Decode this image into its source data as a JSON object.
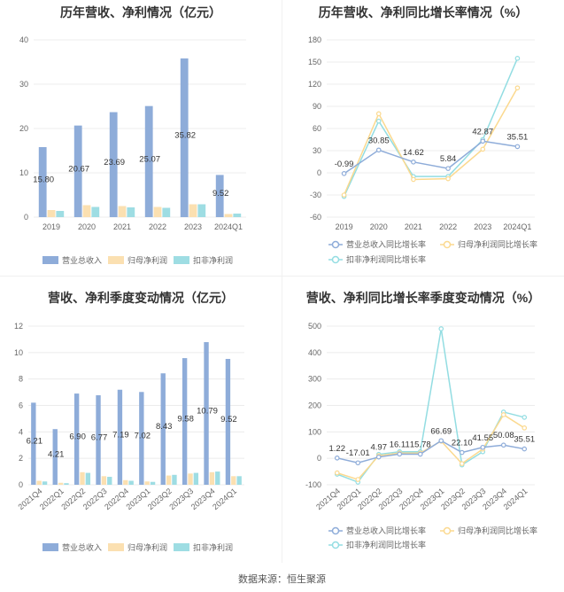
{
  "source": "数据来源：恒生聚源",
  "colors": {
    "revenue": "#8eacd9",
    "parent_profit": "#fbe0b1",
    "deducted_profit": "#9edde3",
    "line_revenue": "#8eacd9",
    "line_parent": "#fbd98f",
    "line_deducted": "#93dde2"
  },
  "chart_data": [
    {
      "type": "bar",
      "title": "历年营收、净利情况（亿元）",
      "categories": [
        "2019",
        "2020",
        "2021",
        "2022",
        "2023",
        "2024Q1"
      ],
      "ylim": [
        0,
        40
      ],
      "yticks": [
        0,
        10,
        20,
        30,
        40
      ],
      "series": [
        {
          "name": "营业总收入",
          "values": [
            15.8,
            20.67,
            23.69,
            25.07,
            35.82,
            9.52
          ],
          "labels": [
            "15.80",
            "20.67",
            "23.69",
            "25.07",
            "35.82",
            "9.52"
          ]
        },
        {
          "name": "归母净利润",
          "values": [
            1.6,
            2.7,
            2.5,
            2.3,
            2.9,
            0.7
          ]
        },
        {
          "name": "扣非净利润",
          "values": [
            1.4,
            2.3,
            2.2,
            2.1,
            2.9,
            0.8
          ]
        }
      ],
      "legend_position": "bottom"
    },
    {
      "type": "line",
      "title": "历年营收、净利同比增长率情况（%）",
      "categories": [
        "2019",
        "2020",
        "2021",
        "2022",
        "2023",
        "2024Q1"
      ],
      "ylim": [
        -60,
        180
      ],
      "yticks": [
        -60,
        -30,
        0,
        30,
        60,
        90,
        120,
        150,
        180
      ],
      "series": [
        {
          "name": "营业总收入同比增长率",
          "values": [
            -0.99,
            30.85,
            14.62,
            5.84,
            42.87,
            35.51
          ],
          "labels": [
            "-0.99",
            "30.85",
            "14.62",
            "5.84",
            "42.87",
            "35.51"
          ]
        },
        {
          "name": "归母净利润同比增长率",
          "values": [
            -30,
            80,
            -9,
            -8,
            32,
            115
          ]
        },
        {
          "name": "扣非净利润同比增长率",
          "values": [
            -32,
            70,
            -5,
            -5,
            45,
            155
          ]
        }
      ],
      "legend_position": "bottom"
    },
    {
      "type": "bar",
      "title": "营收、净利季度变动情况（亿元）",
      "categories": [
        "2021Q4",
        "2022Q1",
        "2022Q2",
        "2022Q3",
        "2022Q4",
        "2023Q1",
        "2023Q2",
        "2023Q3",
        "2023Q4",
        "2024Q1"
      ],
      "ylim": [
        0,
        12
      ],
      "yticks": [
        0,
        2,
        4,
        6,
        8,
        10,
        12
      ],
      "series": [
        {
          "name": "营业总收入",
          "values": [
            6.21,
            4.21,
            6.9,
            6.77,
            7.19,
            7.02,
            8.43,
            9.58,
            10.79,
            9.52
          ],
          "labels": [
            "6.21",
            "4.21",
            "6.90",
            "6.77",
            "7.19",
            "7.02",
            "8.43",
            "9.58",
            "10.79",
            "9.52"
          ]
        },
        {
          "name": "归母净利润",
          "values": [
            0.3,
            0.15,
            0.95,
            0.65,
            0.35,
            0.25,
            0.7,
            0.85,
            0.95,
            0.65
          ]
        },
        {
          "name": "扣非净利润",
          "values": [
            0.25,
            0.12,
            0.9,
            0.6,
            0.3,
            0.22,
            0.75,
            0.9,
            1.0,
            0.65
          ]
        }
      ],
      "legend_position": "bottom"
    },
    {
      "type": "line",
      "title": "营收、净利同比增长率季度变动情况（%）",
      "categories": [
        "2021Q4",
        "2022Q1",
        "2022Q2",
        "2022Q3",
        "2022Q4",
        "2023Q1",
        "2023Q2",
        "2023Q3",
        "2023Q4",
        "2024Q1"
      ],
      "ylim": [
        -100,
        500
      ],
      "yticks": [
        -100,
        0,
        100,
        200,
        300,
        400,
        500
      ],
      "series": [
        {
          "name": "营业总收入同比增长率",
          "values": [
            1.22,
            -17.01,
            4.97,
            16.11,
            15.78,
            66.69,
            22.1,
            41.55,
            50.08,
            35.51
          ],
          "labels": [
            "1.22",
            "-17.01",
            "4.97",
            "16.11",
            "15.78",
            "66.69",
            "22.10",
            "41.55",
            "50.08",
            "35.51"
          ]
        },
        {
          "name": "归母净利润同比增长率",
          "values": [
            -55,
            -80,
            10,
            20,
            20,
            65,
            -20,
            35,
            165,
            115
          ]
        },
        {
          "name": "扣非净利润同比增长率",
          "values": [
            -60,
            -90,
            15,
            25,
            25,
            490,
            -25,
            25,
            175,
            155
          ]
        }
      ],
      "legend_position": "bottom"
    }
  ]
}
